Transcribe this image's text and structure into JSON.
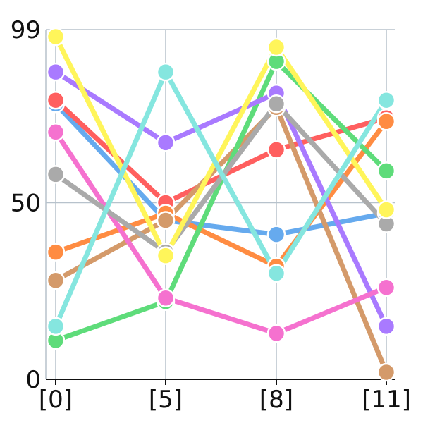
{
  "chart_data": {
    "type": "line",
    "title": "",
    "xlabel": "",
    "ylabel": "",
    "x": [
      "[0]",
      "[5]",
      "[8]",
      "[11]"
    ],
    "ylim": [
      0,
      99
    ],
    "yticks": [
      0,
      50,
      99
    ],
    "grid": true,
    "legend": "none",
    "series": [
      {
        "color": "#66aaee",
        "values": [
          78,
          45,
          41,
          47
        ]
      },
      {
        "color": "#ff5f5f",
        "values": [
          79,
          50,
          65,
          74
        ]
      },
      {
        "color": "#ff8c42",
        "values": [
          36,
          47,
          32,
          73
        ]
      },
      {
        "color": "#d49a6a",
        "values": [
          28,
          45,
          77,
          2
        ]
      },
      {
        "color": "#5edc7a",
        "values": [
          11,
          22,
          90,
          59
        ]
      },
      {
        "color": "#a97aff",
        "values": [
          87,
          67,
          81,
          15
        ]
      },
      {
        "color": "#f571cf",
        "values": [
          70,
          23,
          13,
          26
        ]
      },
      {
        "color": "#aaaaaa",
        "values": [
          58,
          36,
          78,
          44
        ]
      },
      {
        "color": "#fff55a",
        "values": [
          97,
          35,
          94,
          48
        ]
      },
      {
        "color": "#85e6df",
        "values": [
          15,
          87,
          30,
          79
        ]
      }
    ]
  }
}
